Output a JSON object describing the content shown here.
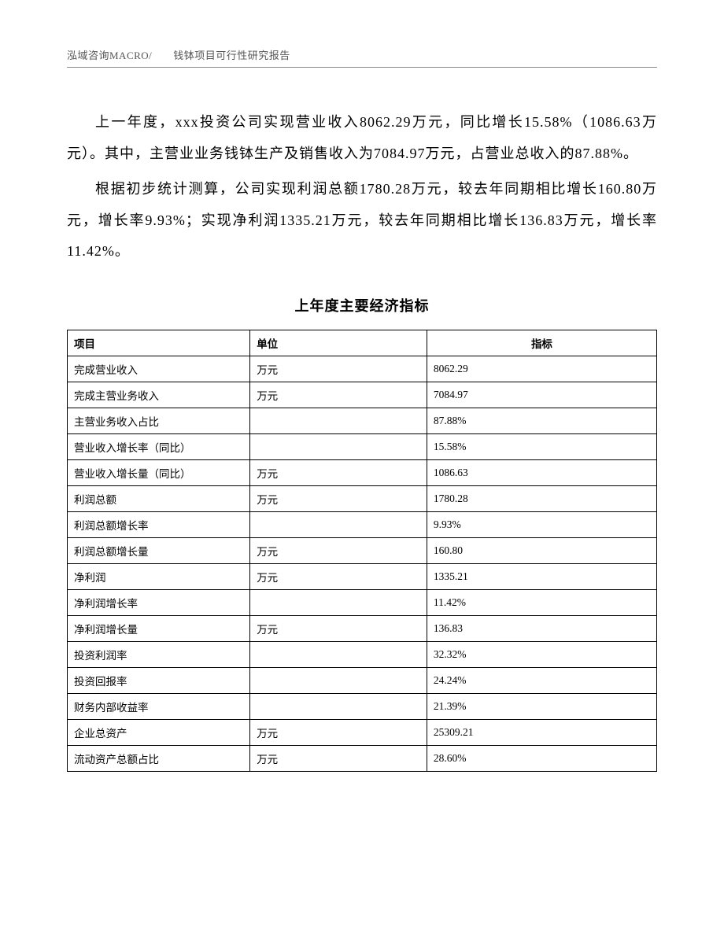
{
  "header": {
    "text": "泓域咨询MACRO/　　钱钵项目可行性研究报告"
  },
  "paragraphs": {
    "p1": "上一年度，xxx投资公司实现营业收入8062.29万元，同比增长15.58%（1086.63万元）。其中，主营业业务钱钵生产及销售收入为7084.97万元，占营业总收入的87.88%。",
    "p2": "根据初步统计测算，公司实现利润总额1780.28万元，较去年同期相比增长160.80万元，增长率9.93%；实现净利润1335.21万元，较去年同期相比增长136.83万元，增长率11.42%。"
  },
  "table": {
    "title": "上年度主要经济指标",
    "columns": [
      "项目",
      "单位",
      "指标"
    ],
    "rows": [
      {
        "c1": "完成营业收入",
        "c2": "万元",
        "c3": "8062.29"
      },
      {
        "c1": "完成主营业务收入",
        "c2": "万元",
        "c3": "7084.97"
      },
      {
        "c1": "主营业务收入占比",
        "c2": "",
        "c3": "87.88%"
      },
      {
        "c1": "营业收入增长率（同比）",
        "c2": "",
        "c3": "15.58%"
      },
      {
        "c1": "营业收入增长量（同比）",
        "c2": "万元",
        "c3": "1086.63"
      },
      {
        "c1": "利润总额",
        "c2": "万元",
        "c3": "1780.28"
      },
      {
        "c1": "利润总额增长率",
        "c2": "",
        "c3": "9.93%"
      },
      {
        "c1": "利润总额增长量",
        "c2": "万元",
        "c3": "160.80"
      },
      {
        "c1": "净利润",
        "c2": "万元",
        "c3": "1335.21"
      },
      {
        "c1": "净利润增长率",
        "c2": "",
        "c3": "11.42%"
      },
      {
        "c1": "净利润增长量",
        "c2": "万元",
        "c3": "136.83"
      },
      {
        "c1": "投资利润率",
        "c2": "",
        "c3": "32.32%"
      },
      {
        "c1": "投资回报率",
        "c2": "",
        "c3": "24.24%"
      },
      {
        "c1": "财务内部收益率",
        "c2": "",
        "c3": "21.39%"
      },
      {
        "c1": "企业总资产",
        "c2": "万元",
        "c3": "25309.21"
      },
      {
        "c1": "流动资产总额占比",
        "c2": "万元",
        "c3": "28.60%"
      }
    ]
  }
}
